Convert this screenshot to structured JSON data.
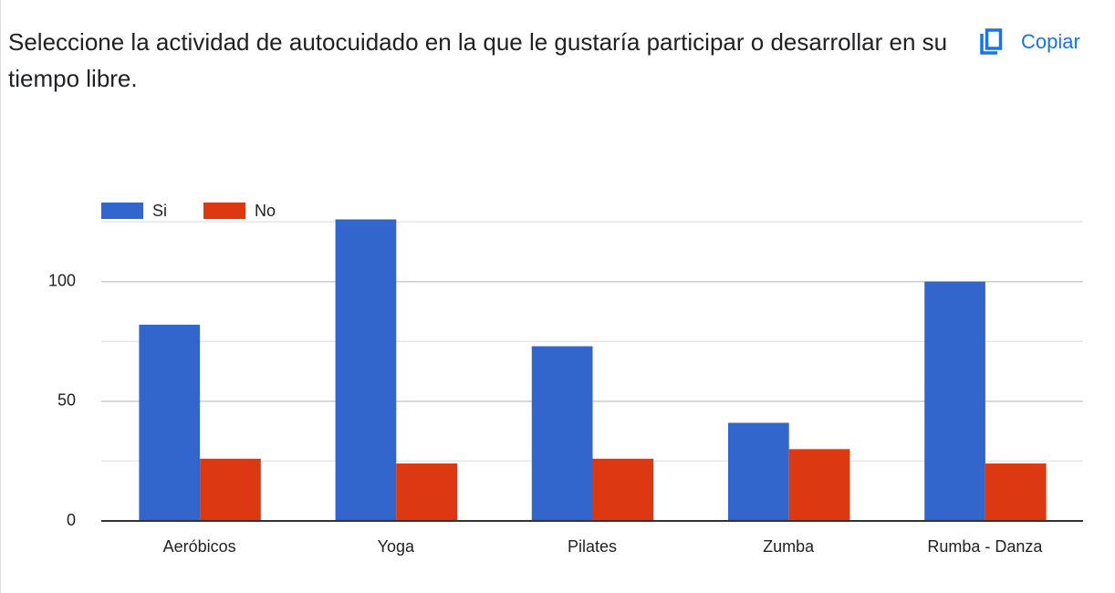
{
  "chart_data": {
    "type": "bar",
    "title": "Seleccione la actividad de autocuidado en la que le gustaría participar o desarrollar en su tiempo libre.",
    "copy_button": "Copiar",
    "categories": [
      "Aeróbicos",
      "Yoga",
      "Pilates",
      "Zumba",
      "Rumba - Danza"
    ],
    "series": [
      {
        "name": "Si",
        "color": "#3366cc",
        "values": [
          82,
          126,
          73,
          41,
          100
        ]
      },
      {
        "name": "No",
        "color": "#dc3912",
        "values": [
          26,
          24,
          26,
          30,
          24
        ]
      }
    ],
    "ylim": [
      0,
      130
    ],
    "yticks": [
      0,
      50,
      100
    ],
    "minor_yticks": [
      25,
      75,
      125
    ],
    "grid": true,
    "legend": "top-left"
  }
}
